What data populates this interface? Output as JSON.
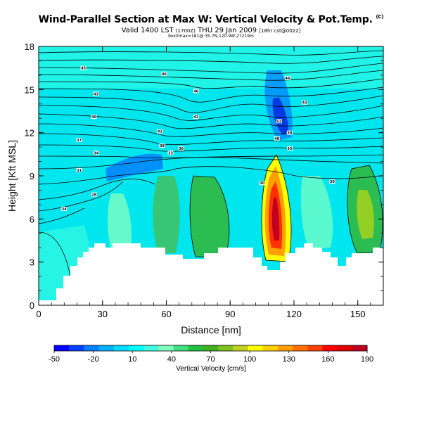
{
  "header": {
    "title": "Wind-Parallel Section at Max W: Vertical Velocity & Pot.Temp.",
    "title_mark": "(C)",
    "valid_main": "Valid 1400 LST",
    "valid_small": "(1700Z)",
    "valid_date": "THU 29 Jan 2009",
    "valid_tail": "[18hr cst@0022]",
    "info": "box0max=181@ 35.7N,120.9W,27219m"
  },
  "chart_data": {
    "type": "heatmap",
    "title": "Wind-Parallel Section at Max W: Vertical Velocity & Pot.Temp.",
    "xlabel": "Distance [nm]",
    "ylabel": "Height [Kft MSL]",
    "xlim": [
      0,
      162
    ],
    "ylim": [
      0,
      18
    ],
    "xticks": [
      "0",
      "30",
      "60",
      "90",
      "120",
      "150"
    ],
    "yticks": [
      "0",
      "3",
      "6",
      "9",
      "12",
      "15",
      "18"
    ],
    "colorbar": {
      "label": "Vertical Velocity [cm/s]",
      "tick_labels": [
        "-50",
        "-20",
        "10",
        "40",
        "70",
        "100",
        "130",
        "160",
        "190"
      ],
      "colors": [
        "#0000ff",
        "#0040ff",
        "#0080ff",
        "#00b0ff",
        "#00dcff",
        "#00ffff",
        "#40ffe0",
        "#80ffc0",
        "#40e080",
        "#20c040",
        "#40b020",
        "#80c020",
        "#c0d020",
        "#ffff00",
        "#ffd000",
        "#ffa000",
        "#ff7000",
        "#ff4000",
        "#ff0000",
        "#e00000",
        "#c00020"
      ]
    },
    "theta_labels": [
      {
        "x": 21,
        "y": 16.5,
        "v": "45"
      },
      {
        "x": 27,
        "y": 14.7,
        "v": "43"
      },
      {
        "x": 26,
        "y": 13.1,
        "v": "40"
      },
      {
        "x": 19,
        "y": 11.5,
        "v": "37"
      },
      {
        "x": 27,
        "y": 10.6,
        "v": "34"
      },
      {
        "x": 19,
        "y": 9.4,
        "v": "31"
      },
      {
        "x": 26,
        "y": 7.7,
        "v": "28"
      },
      {
        "x": 12,
        "y": 6.7,
        "v": "34"
      },
      {
        "x": 59,
        "y": 16.1,
        "v": "46"
      },
      {
        "x": 74,
        "y": 14.9,
        "v": "46"
      },
      {
        "x": 74,
        "y": 13.1,
        "v": "42"
      },
      {
        "x": 57,
        "y": 12.1,
        "v": "41"
      },
      {
        "x": 58,
        "y": 11.1,
        "v": "39"
      },
      {
        "x": 67,
        "y": 10.9,
        "v": "36"
      },
      {
        "x": 62,
        "y": 10.6,
        "v": "33"
      },
      {
        "x": 117,
        "y": 15.8,
        "v": "46"
      },
      {
        "x": 125,
        "y": 14.1,
        "v": "43"
      },
      {
        "x": 113,
        "y": 12.8,
        "v": "52"
      },
      {
        "x": 118,
        "y": 12.0,
        "v": "38"
      },
      {
        "x": 112,
        "y": 11.6,
        "v": "40"
      },
      {
        "x": 118,
        "y": 10.9,
        "v": "35"
      },
      {
        "x": 105,
        "y": 8.5,
        "v": "30"
      },
      {
        "x": 138,
        "y": 8.6,
        "v": "30"
      }
    ]
  }
}
